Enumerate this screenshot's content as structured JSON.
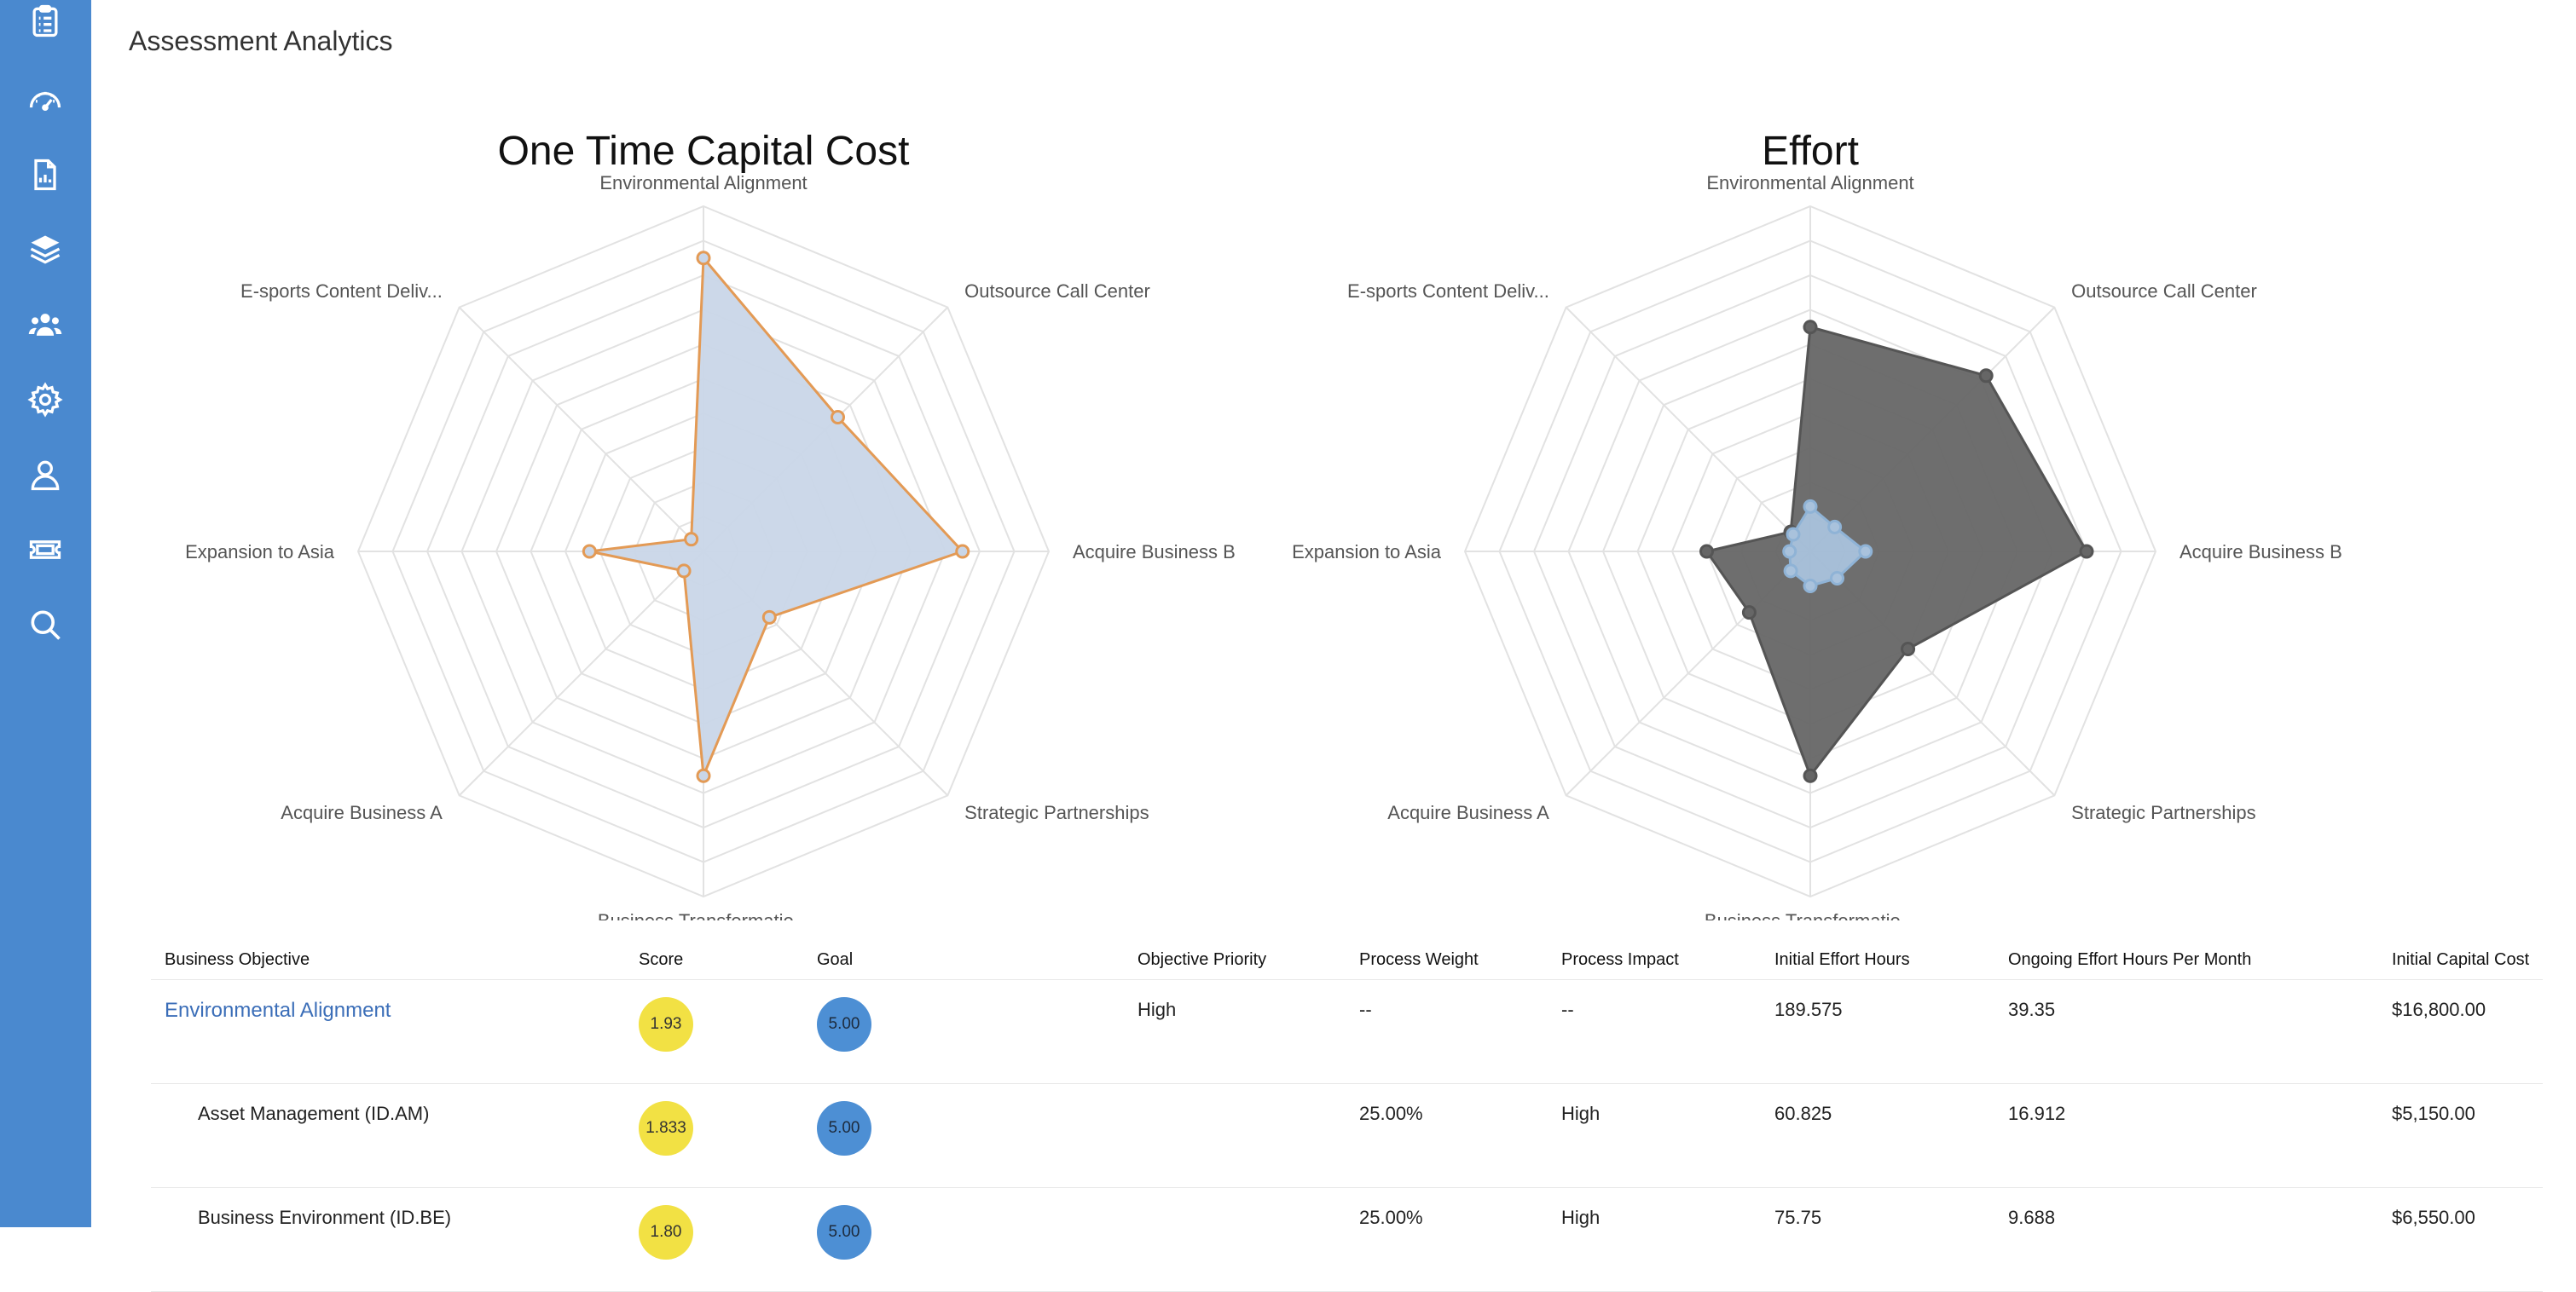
{
  "page": {
    "title": "Assessment Analytics"
  },
  "sidebar": {
    "items": [
      {
        "name": "assessments",
        "icon": "clipboard-list-icon"
      },
      {
        "name": "dashboard",
        "icon": "gauge-icon"
      },
      {
        "name": "reports",
        "icon": "report-icon"
      },
      {
        "name": "layers",
        "icon": "layers-icon"
      },
      {
        "name": "users",
        "icon": "users-icon"
      },
      {
        "name": "settings",
        "icon": "gear-icon"
      },
      {
        "name": "profile",
        "icon": "user-icon"
      },
      {
        "name": "tickets",
        "icon": "ticket-icon"
      },
      {
        "name": "search",
        "icon": "search-icon"
      }
    ],
    "color": "#4a89cf"
  },
  "chart_data": [
    {
      "type": "radar",
      "title": "One Time Capital Cost",
      "axes": [
        "Environmental Alignment",
        "Outsource Call Center",
        "Acquire Business B",
        "Strategic Partnerships",
        "Business Transformatio...",
        "Acquire Business A",
        "Expansion to Asia",
        "E-sports Content Deliv..."
      ],
      "rings": 10,
      "grid": true,
      "series": [
        {
          "color": "#e39a55",
          "fill": "#c9d6e8",
          "values": [
            0.85,
            0.55,
            0.75,
            0.27,
            0.65,
            0.08,
            0.33,
            0.05
          ]
        }
      ]
    },
    {
      "type": "radar",
      "title": "Effort",
      "axes": [
        "Environmental Alignment",
        "Outsource Call Center",
        "Acquire Business B",
        "Strategic Partnerships",
        "Business Transformatio...",
        "Acquire Business A",
        "Expansion to Asia",
        "E-sports Content Deliv..."
      ],
      "rings": 10,
      "grid": true,
      "series": [
        {
          "color": "#555555",
          "fill": "#666666",
          "values": [
            0.65,
            0.72,
            0.8,
            0.4,
            0.65,
            0.25,
            0.3,
            0.08
          ]
        },
        {
          "color": "#8fb3d6",
          "fill": "#a9c2dc",
          "values": [
            0.13,
            0.1,
            0.16,
            0.11,
            0.1,
            0.08,
            0.06,
            0.07
          ]
        }
      ]
    }
  ],
  "table": {
    "headers": [
      "Business Objective",
      "Score",
      "Goal",
      "Objective Priority",
      "Process Weight",
      "Process Impact",
      "Initial Effort Hours",
      "Ongoing Effort Hours Per Month",
      "Initial Capital Cost"
    ],
    "rows": [
      {
        "objective": "Environmental Alignment",
        "score": "1.93",
        "goal": "5.00",
        "priority": "High",
        "weight": "--",
        "impact": "--",
        "initial_hours": "189.575",
        "ongoing_hours": "39.35",
        "capital": "$16,800.00"
      },
      {
        "objective": "Asset Management (ID.AM)",
        "score": "1.833",
        "goal": "5.00",
        "priority": "",
        "weight": "25.00%",
        "impact": "High",
        "initial_hours": "60.825",
        "ongoing_hours": "16.912",
        "capital": "$5,150.00"
      },
      {
        "objective": "Business Environment (ID.BE)",
        "score": "1.80",
        "goal": "5.00",
        "priority": "",
        "weight": "25.00%",
        "impact": "High",
        "initial_hours": "75.75",
        "ongoing_hours": "9.688",
        "capital": "$6,550.00"
      }
    ]
  }
}
